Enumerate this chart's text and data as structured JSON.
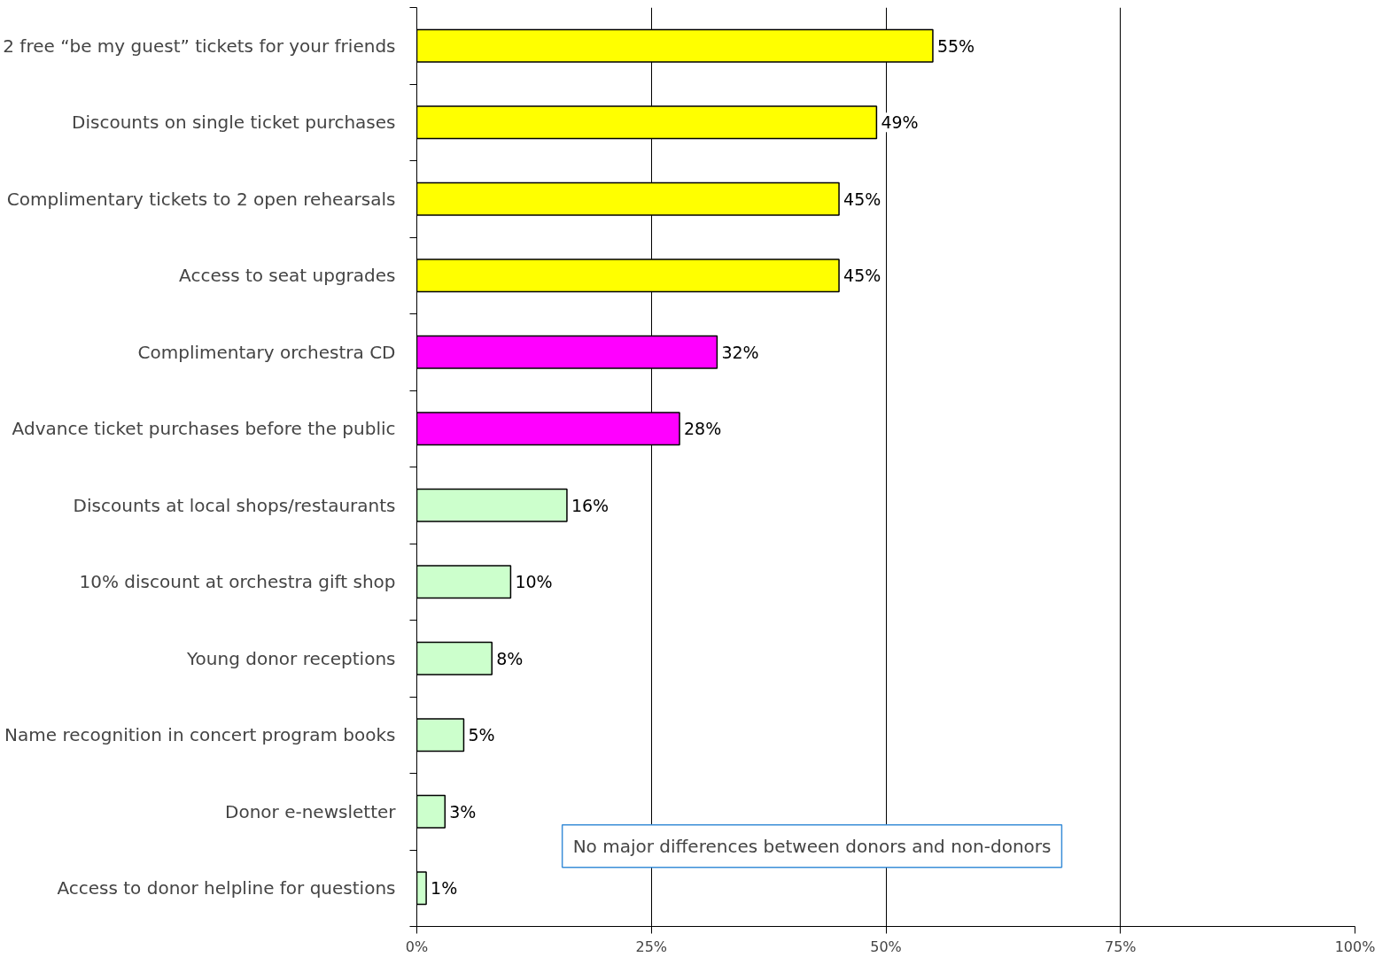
{
  "chart_data": {
    "type": "bar",
    "orientation": "horizontal",
    "categories": [
      "2 free “be my guest” tickets for your friends",
      "Discounts on single ticket purchases",
      "Complimentary tickets to 2 open rehearsals",
      "Access to seat upgrades",
      "Complimentary orchestra CD",
      "Advance ticket purchases before the public",
      "Discounts at local shops/restaurants",
      "10% discount at orchestra gift shop",
      "Young donor receptions",
      "Name recognition in concert program books",
      "Donor e-newsletter",
      "Access to donor helpline for questions"
    ],
    "values": [
      55,
      49,
      45,
      45,
      32,
      28,
      16,
      10,
      8,
      5,
      3,
      1
    ],
    "colors": [
      "#ffff00",
      "#ffff00",
      "#ffff00",
      "#ffff00",
      "#ff00ff",
      "#ff00ff",
      "#ccffcc",
      "#ccffcc",
      "#ccffcc",
      "#ccffcc",
      "#ccffcc",
      "#ccffcc"
    ],
    "value_labels": [
      "55%",
      "49%",
      "45%",
      "45%",
      "32%",
      "28%",
      "16%",
      "10%",
      "8%",
      "5%",
      "3%",
      "1%"
    ],
    "xlim": [
      0,
      100
    ],
    "xticks": [
      {
        "value": 0,
        "label": "0%"
      },
      {
        "value": 25,
        "label": "25%"
      },
      {
        "value": 50,
        "label": "50%"
      },
      {
        "value": 75,
        "label": "75%"
      },
      {
        "value": 100,
        "label": "100%"
      }
    ],
    "grid": "x",
    "annotations": [
      "No major differences between donors and non-donors"
    ]
  }
}
